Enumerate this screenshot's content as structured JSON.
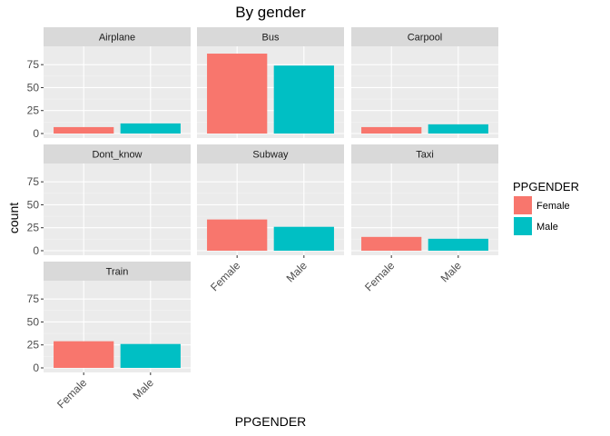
{
  "chart_data": {
    "type": "bar",
    "title": "By gender",
    "xlabel": "PPGENDER",
    "ylabel": "count",
    "categories": [
      "Female",
      "Male"
    ],
    "y_ticks": [
      0,
      25,
      50,
      75
    ],
    "ylim": [
      0,
      90
    ],
    "legend": {
      "title": "PPGENDER",
      "position": "right",
      "entries": [
        {
          "label": "Female",
          "color": "#f8766d"
        },
        {
          "label": "Male",
          "color": "#00bfc4"
        }
      ]
    },
    "facets": [
      {
        "name": "Airplane",
        "values": [
          7,
          11
        ]
      },
      {
        "name": "Bus",
        "values": [
          87,
          74
        ]
      },
      {
        "name": "Carpool",
        "values": [
          7,
          10
        ]
      },
      {
        "name": "Dont_know",
        "values": [
          0,
          0
        ]
      },
      {
        "name": "Subway",
        "values": [
          34,
          26
        ]
      },
      {
        "name": "Taxi",
        "values": [
          15,
          13
        ]
      },
      {
        "name": "Train",
        "values": [
          29,
          26
        ]
      }
    ],
    "panel_background": "#ebebeb",
    "strip_background": "#d9d9d9",
    "grid": true
  }
}
